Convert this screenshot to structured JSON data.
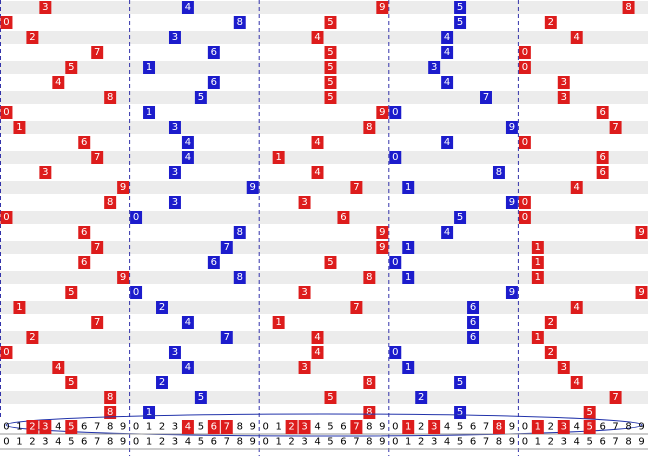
{
  "group_colors": [
    "#dd1c1c",
    "#1c1ccc",
    "#dd1c1c",
    "#1c1ccc",
    "#dd1c1c"
  ],
  "highlight_color": "#dd1c1c",
  "digits": [
    "0",
    "1",
    "2",
    "3",
    "4",
    "5",
    "6",
    "7",
    "8",
    "9"
  ],
  "rows": [
    [
      3,
      4,
      9,
      5,
      8
    ],
    [
      0,
      8,
      5,
      5,
      2
    ],
    [
      2,
      3,
      4,
      4,
      4
    ],
    [
      7,
      6,
      5,
      4,
      0
    ],
    [
      5,
      1,
      5,
      3,
      0
    ],
    [
      4,
      6,
      5,
      4,
      3
    ],
    [
      8,
      5,
      5,
      7,
      3
    ],
    [
      0,
      1,
      9,
      0,
      6
    ],
    [
      1,
      3,
      8,
      9,
      7
    ],
    [
      6,
      4,
      4,
      4,
      0
    ],
    [
      7,
      4,
      1,
      0,
      6
    ],
    [
      3,
      3,
      4,
      8,
      6
    ],
    [
      9,
      9,
      7,
      1,
      4
    ],
    [
      8,
      3,
      3,
      9,
      0
    ],
    [
      0,
      0,
      6,
      5,
      0
    ],
    [
      6,
      8,
      9,
      4,
      9
    ],
    [
      7,
      7,
      9,
      1,
      1
    ],
    [
      6,
      6,
      5,
      0,
      1
    ],
    [
      9,
      8,
      8,
      1,
      1
    ],
    [
      5,
      0,
      3,
      9,
      9
    ],
    [
      1,
      2,
      7,
      6,
      4
    ],
    [
      7,
      4,
      1,
      6,
      2
    ],
    [
      2,
      7,
      4,
      6,
      1
    ],
    [
      0,
      3,
      4,
      0,
      2
    ],
    [
      4,
      4,
      3,
      1,
      3
    ],
    [
      5,
      2,
      8,
      5,
      4
    ],
    [
      8,
      5,
      5,
      2,
      7
    ],
    [
      8,
      1,
      8,
      5,
      5
    ]
  ],
  "selected": [
    [
      2,
      3,
      5
    ],
    [
      4,
      6,
      7
    ],
    [
      2,
      3,
      7
    ],
    [
      1,
      3,
      8
    ],
    [
      1,
      3,
      5
    ]
  ]
}
